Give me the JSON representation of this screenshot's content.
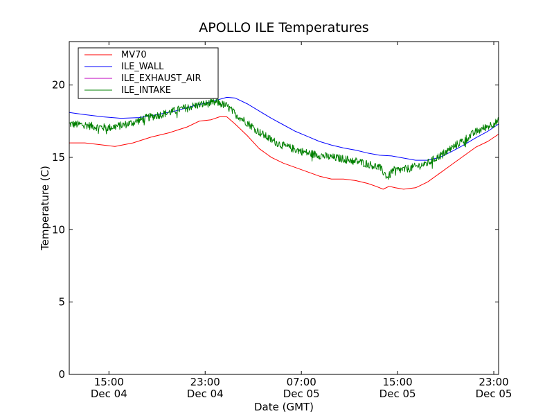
{
  "chart_data": {
    "type": "line",
    "title": "APOLLO ILE Temperatures",
    "xlabel": "Date (GMT)",
    "ylabel": "Temperature (C)",
    "xlim": [
      11.7,
      47.4
    ],
    "ylim": [
      0,
      23
    ],
    "y_ticks": [
      0,
      5,
      10,
      15,
      20
    ],
    "x_ticks": [
      {
        "x": 15,
        "line1": "15:00",
        "line2": "Dec 04"
      },
      {
        "x": 23,
        "line1": "23:00",
        "line2": "Dec 04"
      },
      {
        "x": 31,
        "line1": "07:00",
        "line2": "Dec 05"
      },
      {
        "x": 39,
        "line1": "15:00",
        "line2": "Dec 05"
      },
      {
        "x": 47,
        "line1": "23:00",
        "line2": "Dec 05"
      }
    ],
    "legend_position": "upper-left",
    "series": [
      {
        "name": "MV70",
        "color": "#ff0000",
        "points": [
          [
            11.7,
            16.0
          ],
          [
            13.0,
            16.0
          ],
          [
            14.0,
            15.9
          ],
          [
            15.5,
            15.75
          ],
          [
            17.0,
            16.0
          ],
          [
            18.5,
            16.4
          ],
          [
            20.0,
            16.7
          ],
          [
            21.5,
            17.1
          ],
          [
            22.5,
            17.5
          ],
          [
            23.5,
            17.6
          ],
          [
            24.2,
            17.8
          ],
          [
            24.8,
            17.8
          ],
          [
            25.5,
            17.3
          ],
          [
            26.5,
            16.5
          ],
          [
            27.5,
            15.6
          ],
          [
            28.5,
            15.0
          ],
          [
            29.5,
            14.6
          ],
          [
            30.5,
            14.3
          ],
          [
            31.5,
            14.0
          ],
          [
            32.5,
            13.7
          ],
          [
            33.5,
            13.5
          ],
          [
            34.5,
            13.5
          ],
          [
            35.5,
            13.4
          ],
          [
            36.5,
            13.2
          ],
          [
            37.2,
            13.0
          ],
          [
            37.8,
            12.8
          ],
          [
            38.3,
            13.0
          ],
          [
            38.8,
            12.9
          ],
          [
            39.5,
            12.8
          ],
          [
            40.5,
            12.9
          ],
          [
            41.5,
            13.3
          ],
          [
            42.5,
            13.9
          ],
          [
            43.5,
            14.5
          ],
          [
            44.5,
            15.1
          ],
          [
            45.5,
            15.7
          ],
          [
            46.5,
            16.1
          ],
          [
            47.4,
            16.6
          ]
        ]
      },
      {
        "name": "ILE_WALL",
        "color": "#0000ff",
        "points": [
          [
            11.7,
            18.1
          ],
          [
            13.0,
            17.95
          ],
          [
            14.5,
            17.8
          ],
          [
            16.0,
            17.7
          ],
          [
            17.5,
            17.75
          ],
          [
            19.0,
            17.95
          ],
          [
            20.5,
            18.2
          ],
          [
            22.0,
            18.55
          ],
          [
            23.5,
            18.85
          ],
          [
            24.8,
            19.15
          ],
          [
            25.5,
            19.1
          ],
          [
            26.5,
            18.7
          ],
          [
            27.5,
            18.2
          ],
          [
            28.5,
            17.7
          ],
          [
            29.5,
            17.25
          ],
          [
            30.5,
            16.8
          ],
          [
            31.5,
            16.45
          ],
          [
            32.5,
            16.1
          ],
          [
            33.5,
            15.85
          ],
          [
            34.5,
            15.65
          ],
          [
            35.5,
            15.5
          ],
          [
            36.5,
            15.3
          ],
          [
            37.5,
            15.15
          ],
          [
            38.5,
            15.1
          ],
          [
            39.5,
            14.95
          ],
          [
            40.5,
            14.8
          ],
          [
            41.5,
            14.8
          ],
          [
            42.5,
            15.0
          ],
          [
            43.5,
            15.4
          ],
          [
            44.5,
            15.85
          ],
          [
            45.5,
            16.35
          ],
          [
            46.5,
            16.8
          ],
          [
            47.4,
            17.3
          ]
        ]
      },
      {
        "name": "ILE_EXHAUST_AIR",
        "color": "#bf00bf",
        "points": []
      },
      {
        "name": "ILE_INTAKE",
        "color": "#008000",
        "points": [
          [
            11.7,
            17.3
          ],
          [
            13.0,
            17.25
          ],
          [
            14.0,
            17.1
          ],
          [
            15.0,
            17.05
          ],
          [
            16.0,
            17.2
          ],
          [
            17.0,
            17.4
          ],
          [
            18.0,
            17.7
          ],
          [
            19.0,
            17.9
          ],
          [
            20.0,
            18.1
          ],
          [
            21.0,
            18.35
          ],
          [
            22.0,
            18.55
          ],
          [
            23.0,
            18.7
          ],
          [
            24.0,
            18.8
          ],
          [
            24.8,
            18.55
          ],
          [
            25.5,
            18.0
          ],
          [
            26.5,
            17.4
          ],
          [
            27.5,
            16.75
          ],
          [
            28.5,
            16.2
          ],
          [
            29.5,
            15.8
          ],
          [
            30.5,
            15.55
          ],
          [
            31.5,
            15.3
          ],
          [
            32.5,
            15.15
          ],
          [
            33.5,
            15.0
          ],
          [
            34.5,
            14.9
          ],
          [
            35.5,
            14.75
          ],
          [
            36.5,
            14.55
          ],
          [
            37.5,
            14.3
          ],
          [
            38.2,
            13.6
          ],
          [
            38.6,
            14.1
          ],
          [
            39.5,
            14.15
          ],
          [
            40.5,
            14.35
          ],
          [
            41.5,
            14.6
          ],
          [
            42.5,
            15.1
          ],
          [
            43.5,
            15.65
          ],
          [
            44.5,
            16.2
          ],
          [
            45.5,
            16.75
          ],
          [
            46.5,
            17.15
          ],
          [
            47.4,
            17.5
          ]
        ]
      }
    ]
  }
}
